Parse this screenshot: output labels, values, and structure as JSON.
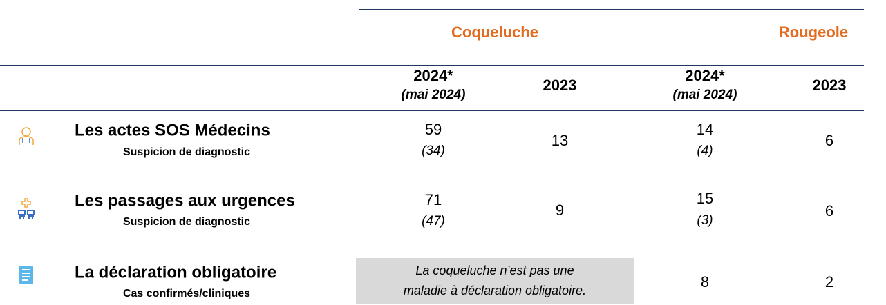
{
  "table": {
    "diseases": [
      "Coqueluche",
      "Rougeole"
    ],
    "columns": [
      {
        "year": "2024*",
        "note": "(mai 2024)"
      },
      {
        "year": "2023"
      },
      {
        "year": "2024*",
        "note": "(mai 2024)"
      },
      {
        "year": "2023"
      }
    ],
    "rows": [
      {
        "title": "Les actes SOS Médecins",
        "subtitle": "Suspicion de diagnostic",
        "cells": [
          {
            "value": 59,
            "note": "(34)"
          },
          {
            "value": 13
          },
          {
            "value": 14,
            "note": "(4)"
          },
          {
            "value": 6
          }
        ]
      },
      {
        "title": "Les passages aux urgences",
        "subtitle": "Suspicion de diagnostic",
        "cells": [
          {
            "value": 71,
            "note": "(47)"
          },
          {
            "value": 9
          },
          {
            "value": 15,
            "note": "(3)"
          },
          {
            "value": 6
          }
        ]
      },
      {
        "title": "La déclaration obligatoire",
        "subtitle": "Cas confirmés/cliniques",
        "note_box": [
          "La coqueluche n’est pas une",
          "maladie à déclaration obligatoire."
        ],
        "cells": [
          {
            "value": 8
          },
          {
            "value": 2
          }
        ]
      }
    ]
  }
}
